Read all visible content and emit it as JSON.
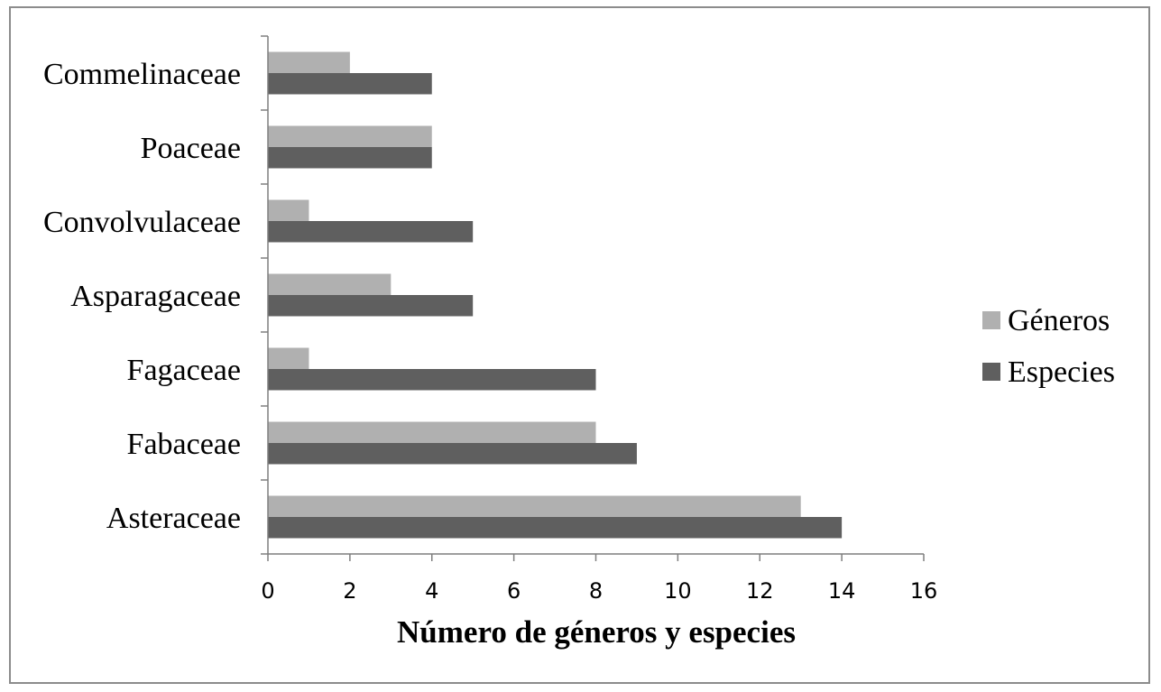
{
  "chart_data": {
    "type": "bar",
    "orientation": "horizontal",
    "categories": [
      "Asteraceae",
      "Fabaceae",
      "Fagaceae",
      "Asparagaceae",
      "Convolvulaceae",
      "Poaceae",
      "Commelinaceae"
    ],
    "series": [
      {
        "name": "Géneros",
        "values": [
          13,
          8,
          1,
          3,
          1,
          4,
          2
        ],
        "color": "#b0b0b0"
      },
      {
        "name": "Especies",
        "values": [
          14,
          9,
          8,
          5,
          5,
          4,
          4
        ],
        "color": "#5f5f5f"
      }
    ],
    "xlabel": "Número de géneros y especies",
    "xlim": [
      0,
      16
    ],
    "xticks": [
      "0",
      "2",
      "4",
      "6",
      "8",
      "10",
      "12",
      "14",
      "16"
    ],
    "grid": false,
    "legend_position": "right"
  }
}
